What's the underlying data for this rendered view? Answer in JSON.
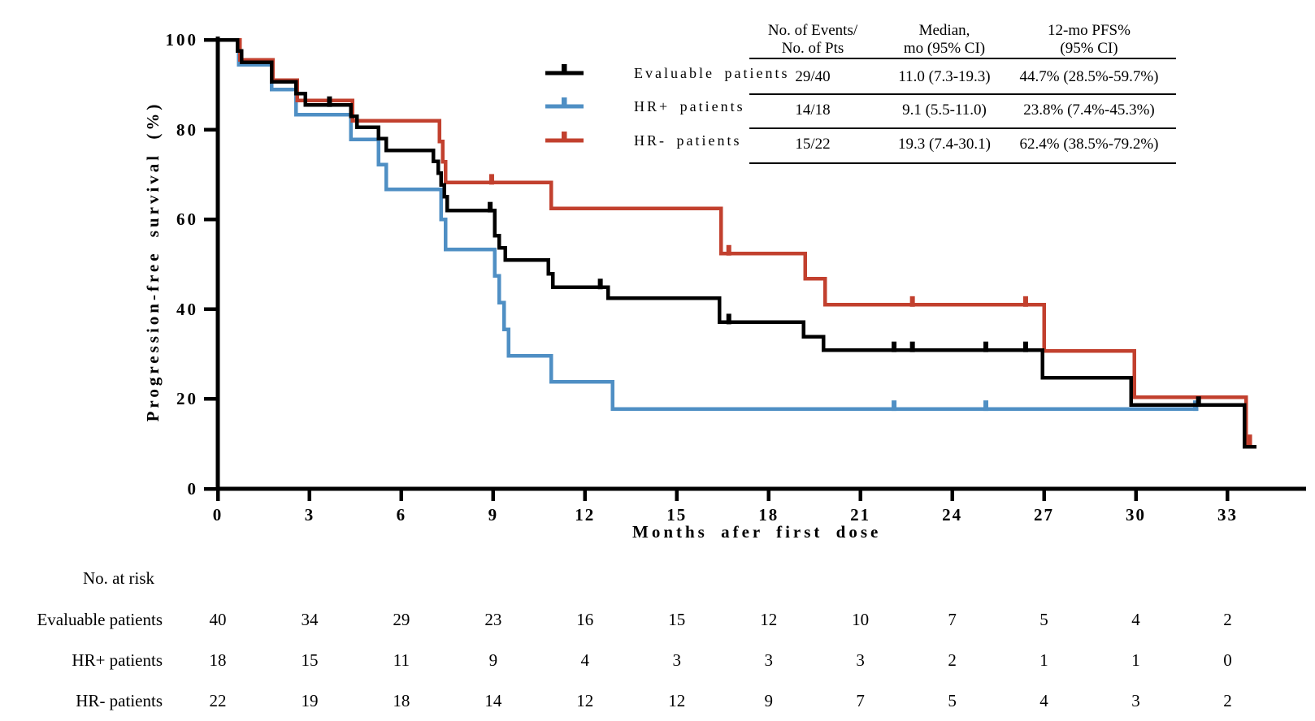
{
  "colors": {
    "axis": "#000000",
    "evaluable": "#000000",
    "hr_positive": "#4F8FC4",
    "hr_negative": "#C2402E",
    "background": "#ffffff"
  },
  "chart_data": {
    "type": "line",
    "subtype": "kaplan-meier-step",
    "title": "",
    "xlabel": "Months afer first dose",
    "ylabel": "Progression-free survival (%)",
    "xlim": [
      0,
      35.5
    ],
    "ylim": [
      0,
      100
    ],
    "xticks": [
      0,
      3,
      6,
      9,
      12,
      15,
      18,
      21,
      24,
      27,
      30,
      33
    ],
    "yticks": [
      0,
      20,
      40,
      60,
      80,
      100
    ],
    "grid": false,
    "legend_position": "inside-top-left-of-table",
    "series": [
      {
        "name": "HR+ patients",
        "color_key": "hr_positive",
        "start": [
          0,
          100
        ],
        "steps": [
          [
            0.68,
            94.4
          ],
          [
            1.76,
            88.9
          ],
          [
            2.55,
            83.3
          ],
          [
            4.35,
            77.8
          ],
          [
            5.25,
            72.2
          ],
          [
            5.5,
            66.7
          ],
          [
            7.3,
            60.0
          ],
          [
            7.45,
            53.3
          ],
          [
            9.05,
            47.4
          ],
          [
            9.2,
            41.5
          ],
          [
            9.35,
            35.5
          ],
          [
            9.5,
            29.6
          ],
          [
            10.9,
            23.8
          ],
          [
            12.9,
            17.8
          ]
        ],
        "end_time": 32.05,
        "censors": [
          [
            22.1,
            17.8
          ],
          [
            25.1,
            17.8
          ],
          [
            31.95,
            17.8
          ]
        ]
      },
      {
        "name": "HR- patients",
        "color_key": "hr_negative",
        "start": [
          0,
          100
        ],
        "steps": [
          [
            0.72,
            95.5
          ],
          [
            1.8,
            91.0
          ],
          [
            2.6,
            86.5
          ],
          [
            4.4,
            82.0
          ],
          [
            7.25,
            77.4
          ],
          [
            7.35,
            72.8
          ],
          [
            7.45,
            68.2
          ],
          [
            10.9,
            62.4
          ],
          [
            16.45,
            52.4
          ],
          [
            19.2,
            46.8
          ],
          [
            19.85,
            41.0
          ],
          [
            27.0,
            30.7
          ],
          [
            29.95,
            20.4
          ],
          [
            33.6,
            10.2
          ]
        ],
        "end_time": 33.8,
        "censors": [
          [
            8.95,
            68.2
          ],
          [
            16.7,
            52.4
          ],
          [
            22.7,
            41.0
          ],
          [
            26.4,
            41.0
          ],
          [
            33.72,
            10.2
          ]
        ]
      },
      {
        "name": "Evaluable patients",
        "color_key": "evaluable",
        "start": [
          0,
          100
        ],
        "steps": [
          [
            0.65,
            97.5
          ],
          [
            0.78,
            95.0
          ],
          [
            1.76,
            90.6
          ],
          [
            2.55,
            88.0
          ],
          [
            2.86,
            85.5
          ],
          [
            4.35,
            83.0
          ],
          [
            4.55,
            80.5
          ],
          [
            5.25,
            78.0
          ],
          [
            5.5,
            75.4
          ],
          [
            7.05,
            72.9
          ],
          [
            7.2,
            70.3
          ],
          [
            7.3,
            67.7
          ],
          [
            7.4,
            65.1
          ],
          [
            7.5,
            62.0
          ],
          [
            9.05,
            56.4
          ],
          [
            9.2,
            53.7
          ],
          [
            9.4,
            51.0
          ],
          [
            10.8,
            47.9
          ],
          [
            10.95,
            44.9
          ],
          [
            12.75,
            42.5
          ],
          [
            16.4,
            37.1
          ],
          [
            19.15,
            33.9
          ],
          [
            19.8,
            30.9
          ],
          [
            26.95,
            24.7
          ],
          [
            29.85,
            18.7
          ],
          [
            33.55,
            9.4
          ]
        ],
        "end_time": 33.95,
        "censors": [
          [
            3.65,
            85.5
          ],
          [
            8.9,
            62.0
          ],
          [
            12.5,
            44.9
          ],
          [
            16.7,
            37.1
          ],
          [
            22.1,
            30.9
          ],
          [
            22.7,
            30.9
          ],
          [
            25.1,
            30.9
          ],
          [
            26.4,
            30.9
          ],
          [
            32.05,
            18.7
          ]
        ]
      }
    ]
  },
  "legend": {
    "items": [
      {
        "label": "Evaluable patients",
        "color_key": "evaluable"
      },
      {
        "label": "HR+ patients",
        "color_key": "hr_positive"
      },
      {
        "label": "HR- patients",
        "color_key": "hr_negative"
      }
    ]
  },
  "stats_table": {
    "headers": [
      [
        "No. of Events/",
        "No. of Pts"
      ],
      [
        "Median,",
        "mo (95% CI)"
      ],
      [
        "12-mo PFS%",
        "(95% CI)"
      ]
    ],
    "rows": [
      [
        "29/40",
        "11.0 (7.3-19.3)",
        "44.7% (28.5%-59.7%)"
      ],
      [
        "14/18",
        "9.1 (5.5-11.0)",
        "23.8% (7.4%-45.3%)"
      ],
      [
        "15/22",
        "19.3 (7.4-30.1)",
        "62.4% (38.5%-79.2%)"
      ]
    ]
  },
  "risk_table": {
    "title": "No. at risk",
    "columns_months": [
      0,
      3,
      6,
      9,
      12,
      15,
      18,
      21,
      24,
      27,
      30,
      33
    ],
    "rows": [
      {
        "label": "Evaluable patients",
        "values": [
          "40",
          "34",
          "29",
          "23",
          "16",
          "15",
          "12",
          "10",
          "7",
          "5",
          "4",
          "2"
        ]
      },
      {
        "label": "HR+ patients",
        "values": [
          "18",
          "15",
          "11",
          "9",
          "4",
          "3",
          "3",
          "3",
          "2",
          "1",
          "1",
          "0"
        ]
      },
      {
        "label": "HR- patients",
        "values": [
          "22",
          "19",
          "18",
          "14",
          "12",
          "12",
          "9",
          "7",
          "5",
          "4",
          "3",
          "2"
        ]
      }
    ]
  }
}
